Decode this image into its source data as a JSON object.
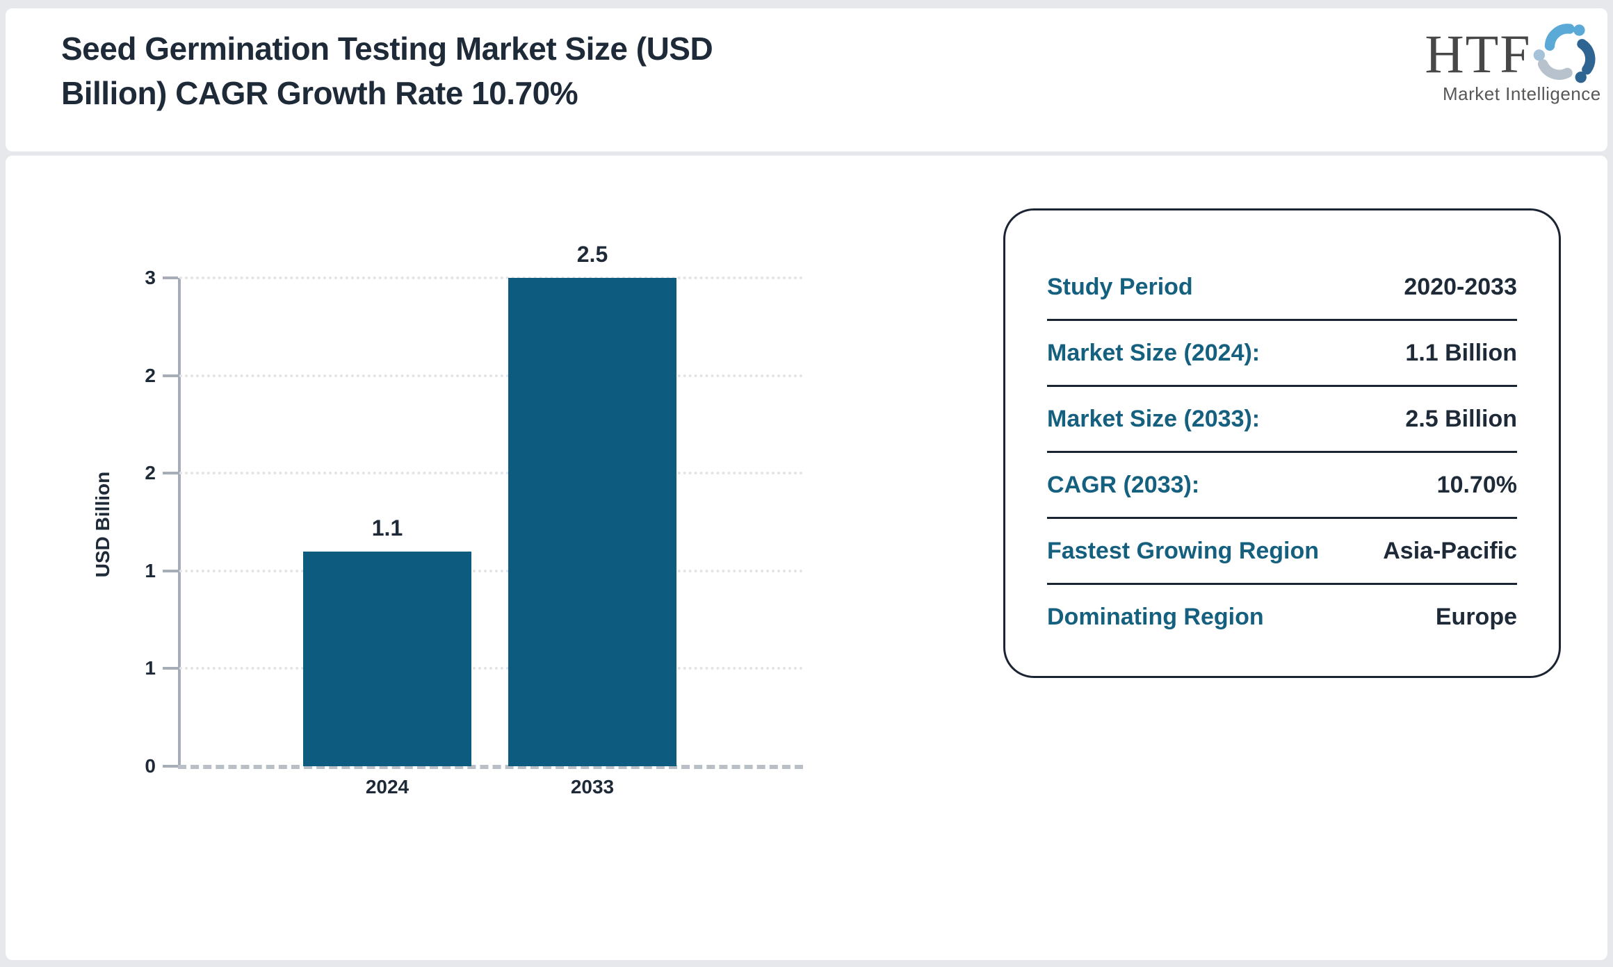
{
  "header": {
    "title_lines": [
      "Seed Germination Testing Market Size (USD",
      "Billion) CAGR Growth Rate 10.70%"
    ],
    "logo": {
      "name": "HTF",
      "subtitle": "Market Intelligence"
    }
  },
  "chart_data": {
    "type": "bar",
    "title": "Seed Germination Testing Market Size (USD Billion) CAGR Growth Rate 10.70%",
    "categories": [
      "2024",
      "2033"
    ],
    "values": [
      1.1,
      2.5
    ],
    "bar_labels": [
      "1.1",
      "2.5"
    ],
    "ylabel": "USD Billion",
    "ylim": [
      0,
      3
    ],
    "ytick_labels": [
      "0",
      "1",
      "1",
      "2",
      "2",
      "3"
    ],
    "grid": "horizontal-dotted",
    "legend": "none",
    "bar_color": "#0d5c80"
  },
  "info_panel": {
    "rows": [
      {
        "label": "Study Period",
        "value": "2020-2033"
      },
      {
        "label": "Market Size (2024):",
        "value": "1.1 Billion"
      },
      {
        "label": "Market Size (2033):",
        "value": "2.5 Billion"
      },
      {
        "label": "CAGR (2033):",
        "value": "10.70%"
      },
      {
        "label": "Fastest Growing Region",
        "value": "Asia-Pacific"
      },
      {
        "label": "Dominating Region",
        "value": "Europe"
      }
    ]
  },
  "colors": {
    "page_margin": "#e7e8ec",
    "panel": "#ffffff",
    "text_dark": "#1e2a38",
    "teal_label": "#15607f",
    "bar": "#0d5c80",
    "axis": "#a6adb6",
    "gridline": "#e3e4e6",
    "baseline_dash": "#b9bfc7",
    "card_border": "#1a2433",
    "logo_text": "#474747",
    "logo_subtitle": "#57575a",
    "logo_blue_light": "#5ba9d6",
    "logo_blue_dark": "#2d6491",
    "logo_gray": "#b7c2cc"
  }
}
